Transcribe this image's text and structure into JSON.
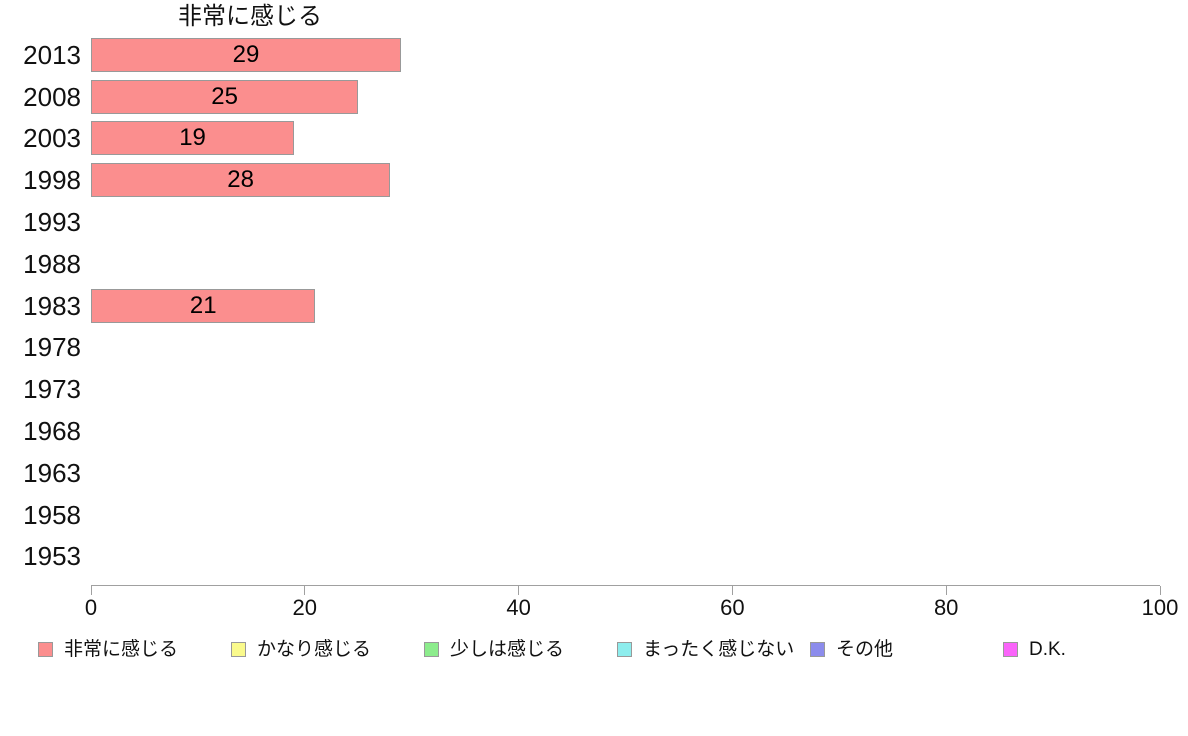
{
  "chart_data": {
    "type": "bar",
    "orientation": "horizontal",
    "title": "非常に感じる",
    "categories": [
      "2013",
      "2008",
      "2003",
      "1998",
      "1993",
      "1988",
      "1983",
      "1978",
      "1973",
      "1968",
      "1963",
      "1958",
      "1953"
    ],
    "series": [
      {
        "name": "非常に感じる",
        "color": "#FB8E8E",
        "values": [
          29,
          25,
          19,
          28,
          null,
          null,
          21,
          null,
          null,
          null,
          null,
          null,
          null
        ]
      }
    ],
    "xlabel": "",
    "ylabel": "",
    "xlim": [
      0,
      100
    ],
    "x_ticks": [
      "0",
      "20",
      "40",
      "60",
      "80",
      "100"
    ],
    "grid": false,
    "bar_border_color": "#999999",
    "axis_color": "#A0A0A0",
    "legend_position": "bottom",
    "legend": [
      {
        "label": "非常に感じる",
        "color": "#FB8E8E"
      },
      {
        "label": "かなり感じる",
        "color": "#FAFA8C"
      },
      {
        "label": "少しは感じる",
        "color": "#8CEC8C"
      },
      {
        "label": "まったく感じない",
        "color": "#8DEDED"
      },
      {
        "label": "その他",
        "color": "#8C8CEC"
      },
      {
        "label": "D.K.",
        "color": "#FA64FA"
      }
    ]
  }
}
